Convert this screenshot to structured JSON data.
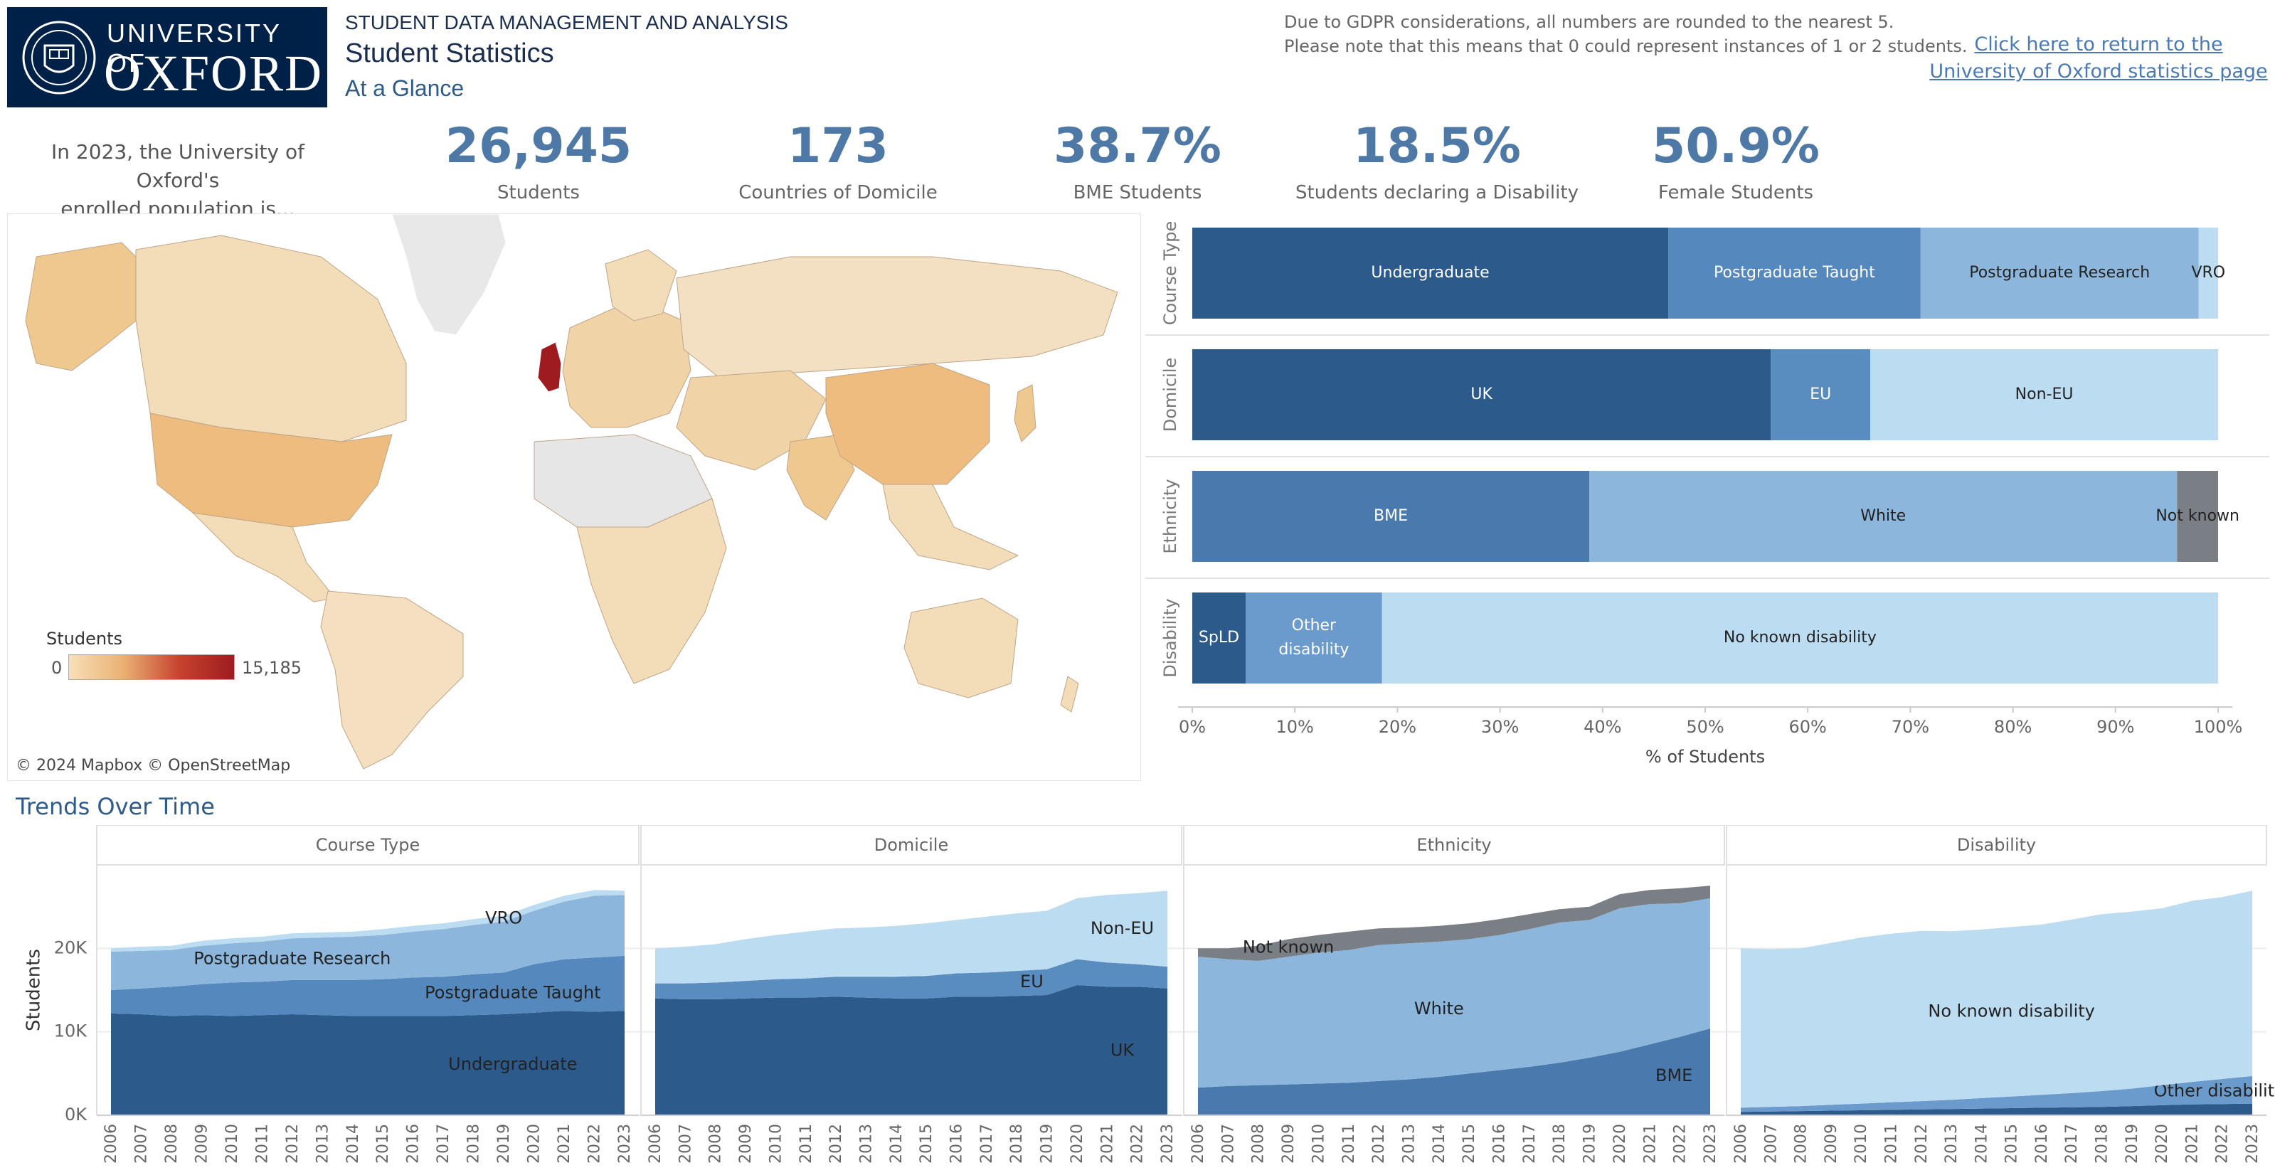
{
  "header": {
    "logo_line1": "UNIVERSITY OF",
    "logo_line2": "OXFORD",
    "kicker": "STUDENT DATA MANAGEMENT AND ANALYSIS",
    "title": "Student Statistics",
    "subtitle": "At a Glance",
    "gdpr_line1": "Due to GDPR considerations, all numbers are rounded to the nearest 5.",
    "gdpr_line2": "Please note that this means that 0 could represent instances of 1 or 2 students.",
    "link_line1": "Click here to return to the",
    "link_line2": "University of Oxford statistics page"
  },
  "intro": {
    "line1": "In 2023, the University of Oxford's",
    "line2": "enrolled population is..."
  },
  "kpis": [
    {
      "value": "26,945",
      "label": "Students"
    },
    {
      "value": "173",
      "label": "Countries of Domicile"
    },
    {
      "value": "38.7%",
      "label": "BME Students"
    },
    {
      "value": "18.5%",
      "label": "Students declaring a Disability"
    },
    {
      "value": "50.9%",
      "label": "Female Students"
    }
  ],
  "map": {
    "legend_title": "Students",
    "legend_min": "0",
    "legend_max": "15,185",
    "credit": "© 2024 Mapbox © OpenStreetMap"
  },
  "trends_title": "Trends Over Time",
  "colors": {
    "undergraduate": "#2c5a8a",
    "pgt": "#5589bd",
    "pgr": "#8cb6dc",
    "vro": "#bcdcf2",
    "uk": "#2c5a8a",
    "eu": "#5a8dbf",
    "noneu": "#bcdcf2",
    "bme": "#4a7aad",
    "white": "#8cb6dc",
    "notknown": "#7a7e85",
    "spld": "#2c5a8a",
    "otherdis": "#6b9bcc",
    "nodis": "#bcdcf2"
  },
  "chart_data": [
    {
      "type": "bar",
      "orientation": "horizontal",
      "stacked": true,
      "categories": [
        "Course Type",
        "Domicile",
        "Ethnicity",
        "Disability"
      ],
      "xlabel": "% of Students",
      "xlim": [
        0,
        100
      ],
      "x_ticks": [
        "0%",
        "10%",
        "20%",
        "30%",
        "40%",
        "50%",
        "60%",
        "70%",
        "80%",
        "90%",
        "100%"
      ],
      "rows": [
        {
          "category": "Course Type",
          "segments": [
            {
              "name": "Undergraduate",
              "value": 46.4,
              "color": "#2c5a8a"
            },
            {
              "name": "Postgraduate Taught",
              "value": 24.6,
              "color": "#5589bd"
            },
            {
              "name": "Postgraduate Research",
              "value": 27.1,
              "color": "#8cb6dc"
            },
            {
              "name": "VRO",
              "value": 1.9,
              "color": "#bcdcf2"
            }
          ]
        },
        {
          "category": "Domicile",
          "segments": [
            {
              "name": "UK",
              "value": 56.4,
              "color": "#2c5a8a"
            },
            {
              "name": "EU",
              "value": 9.7,
              "color": "#5a8dbf"
            },
            {
              "name": "Non-EU",
              "value": 33.9,
              "color": "#bcdcf2"
            }
          ]
        },
        {
          "category": "Ethnicity",
          "segments": [
            {
              "name": "BME",
              "value": 38.7,
              "color": "#4a7aad"
            },
            {
              "name": "White",
              "value": 57.3,
              "color": "#8cb6dc"
            },
            {
              "name": "Not known",
              "value": 4.0,
              "color": "#7a7e85"
            }
          ]
        },
        {
          "category": "Disability",
          "segments": [
            {
              "name": "SpLD",
              "value": 5.2,
              "color": "#2c5a8a"
            },
            {
              "name": "Other disability",
              "label_lines": [
                "Other",
                "disability"
              ],
              "value": 13.3,
              "color": "#6b9bcc"
            },
            {
              "name": "No known disability",
              "value": 81.5,
              "color": "#bcdcf2"
            }
          ]
        }
      ]
    },
    {
      "type": "area",
      "stacked": true,
      "ylabel": "Students",
      "ylim": [
        0,
        30000
      ],
      "y_ticks": [
        {
          "v": 0,
          "t": "0K"
        },
        {
          "v": 10000,
          "t": "10K"
        },
        {
          "v": 20000,
          "t": "20K"
        }
      ],
      "x": [
        2006,
        2007,
        2008,
        2009,
        2010,
        2011,
        2012,
        2013,
        2014,
        2015,
        2016,
        2017,
        2018,
        2019,
        2020,
        2021,
        2022,
        2023
      ],
      "panels": [
        {
          "title": "Course Type",
          "series": [
            {
              "name": "Undergraduate",
              "color": "#2c5a8a",
              "label_year": 2019.3,
              "values": [
                12200,
                12100,
                11900,
                12000,
                11900,
                12000,
                12100,
                12000,
                11900,
                11900,
                11900,
                11900,
                12000,
                12100,
                12300,
                12500,
                12400,
                12500
              ]
            },
            {
              "name": "Postgraduate Taught",
              "color": "#5589bd",
              "label_year": 2019.3,
              "values": [
                2800,
                3100,
                3500,
                3700,
                4000,
                4000,
                4100,
                4200,
                4300,
                4400,
                4600,
                4700,
                4900,
                5000,
                5800,
                6200,
                6500,
                6600
              ]
            },
            {
              "name": "Postgraduate Research",
              "color": "#8cb6dc",
              "label_year": 2012,
              "values": [
                4600,
                4500,
                4400,
                4600,
                4700,
                4800,
                5000,
                5100,
                5200,
                5300,
                5500,
                5700,
                5900,
                6100,
                6400,
                6900,
                7400,
                7300
              ]
            },
            {
              "name": "VRO",
              "color": "#bcdcf2",
              "label_year": 2019,
              "values": [
                400,
                500,
                500,
                600,
                600,
                600,
                600,
                600,
                600,
                700,
                700,
                700,
                700,
                700,
                700,
                700,
                700,
                500
              ]
            }
          ]
        },
        {
          "title": "Domicile",
          "series": [
            {
              "name": "UK",
              "color": "#2c5a8a",
              "label_year": 2021.5,
              "values": [
                14000,
                13900,
                13900,
                14000,
                14100,
                14100,
                14200,
                14100,
                14000,
                14000,
                14200,
                14200,
                14300,
                14400,
                15600,
                15400,
                15400,
                15200
              ]
            },
            {
              "name": "EU",
              "color": "#5a8dbf",
              "label_year": 2018.5,
              "values": [
                1800,
                1900,
                2000,
                2100,
                2200,
                2300,
                2400,
                2500,
                2600,
                2700,
                2800,
                2900,
                3000,
                3100,
                3100,
                2900,
                2700,
                2600
              ]
            },
            {
              "name": "Non-EU",
              "color": "#bcdcf2",
              "label_year": 2021.5,
              "values": [
                4200,
                4400,
                4600,
                5000,
                5300,
                5600,
                5800,
                5900,
                6100,
                6300,
                6400,
                6700,
                6900,
                7000,
                7300,
                8100,
                8500,
                9100
              ]
            }
          ]
        },
        {
          "title": "Ethnicity",
          "series": [
            {
              "name": "BME",
              "color": "#4a7aad",
              "label_year": 2021.8,
              "values": [
                3300,
                3500,
                3600,
                3700,
                3800,
                3900,
                4100,
                4300,
                4600,
                5000,
                5400,
                5800,
                6300,
                6900,
                7600,
                8500,
                9400,
                10400
              ]
            },
            {
              "name": "White",
              "color": "#8cb6dc",
              "label_year": 2014,
              "values": [
                15700,
                15200,
                14900,
                15300,
                15700,
                15900,
                16300,
                16300,
                16200,
                16100,
                16200,
                16500,
                16800,
                16500,
                17200,
                16800,
                16000,
                15600
              ]
            },
            {
              "name": "Not known",
              "color": "#7a7e85",
              "label_year": 2009,
              "values": [
                1000,
                1300,
                1800,
                2100,
                2100,
                2200,
                2000,
                1900,
                1900,
                1900,
                1900,
                1800,
                1600,
                1600,
                1700,
                1700,
                1800,
                1500
              ]
            }
          ]
        },
        {
          "title": "Disability",
          "series": [
            {
              "name": "SpLD",
              "color": "#2c5a8a",
              "label_year": null,
              "values": [
                400,
                450,
                500,
                550,
                600,
                650,
                700,
                750,
                800,
                850,
                900,
                950,
                1000,
                1100,
                1200,
                1300,
                1350,
                1400
              ]
            },
            {
              "name": "Other disability",
              "color": "#6b9bcc",
              "label_year": 2021.9,
              "values": [
                500,
                550,
                600,
                700,
                800,
                900,
                1000,
                1100,
                1250,
                1400,
                1550,
                1700,
                1900,
                2100,
                2400,
                2700,
                3000,
                3300
              ]
            },
            {
              "name": "No known disability",
              "color": "#bcdcf2",
              "label_year": 2015,
              "values": [
                19100,
                18900,
                18900,
                19400,
                19900,
                20200,
                20400,
                20200,
                20200,
                20300,
                20400,
                20800,
                21200,
                21200,
                21200,
                21700,
                21800,
                22200
              ]
            }
          ]
        }
      ]
    }
  ]
}
